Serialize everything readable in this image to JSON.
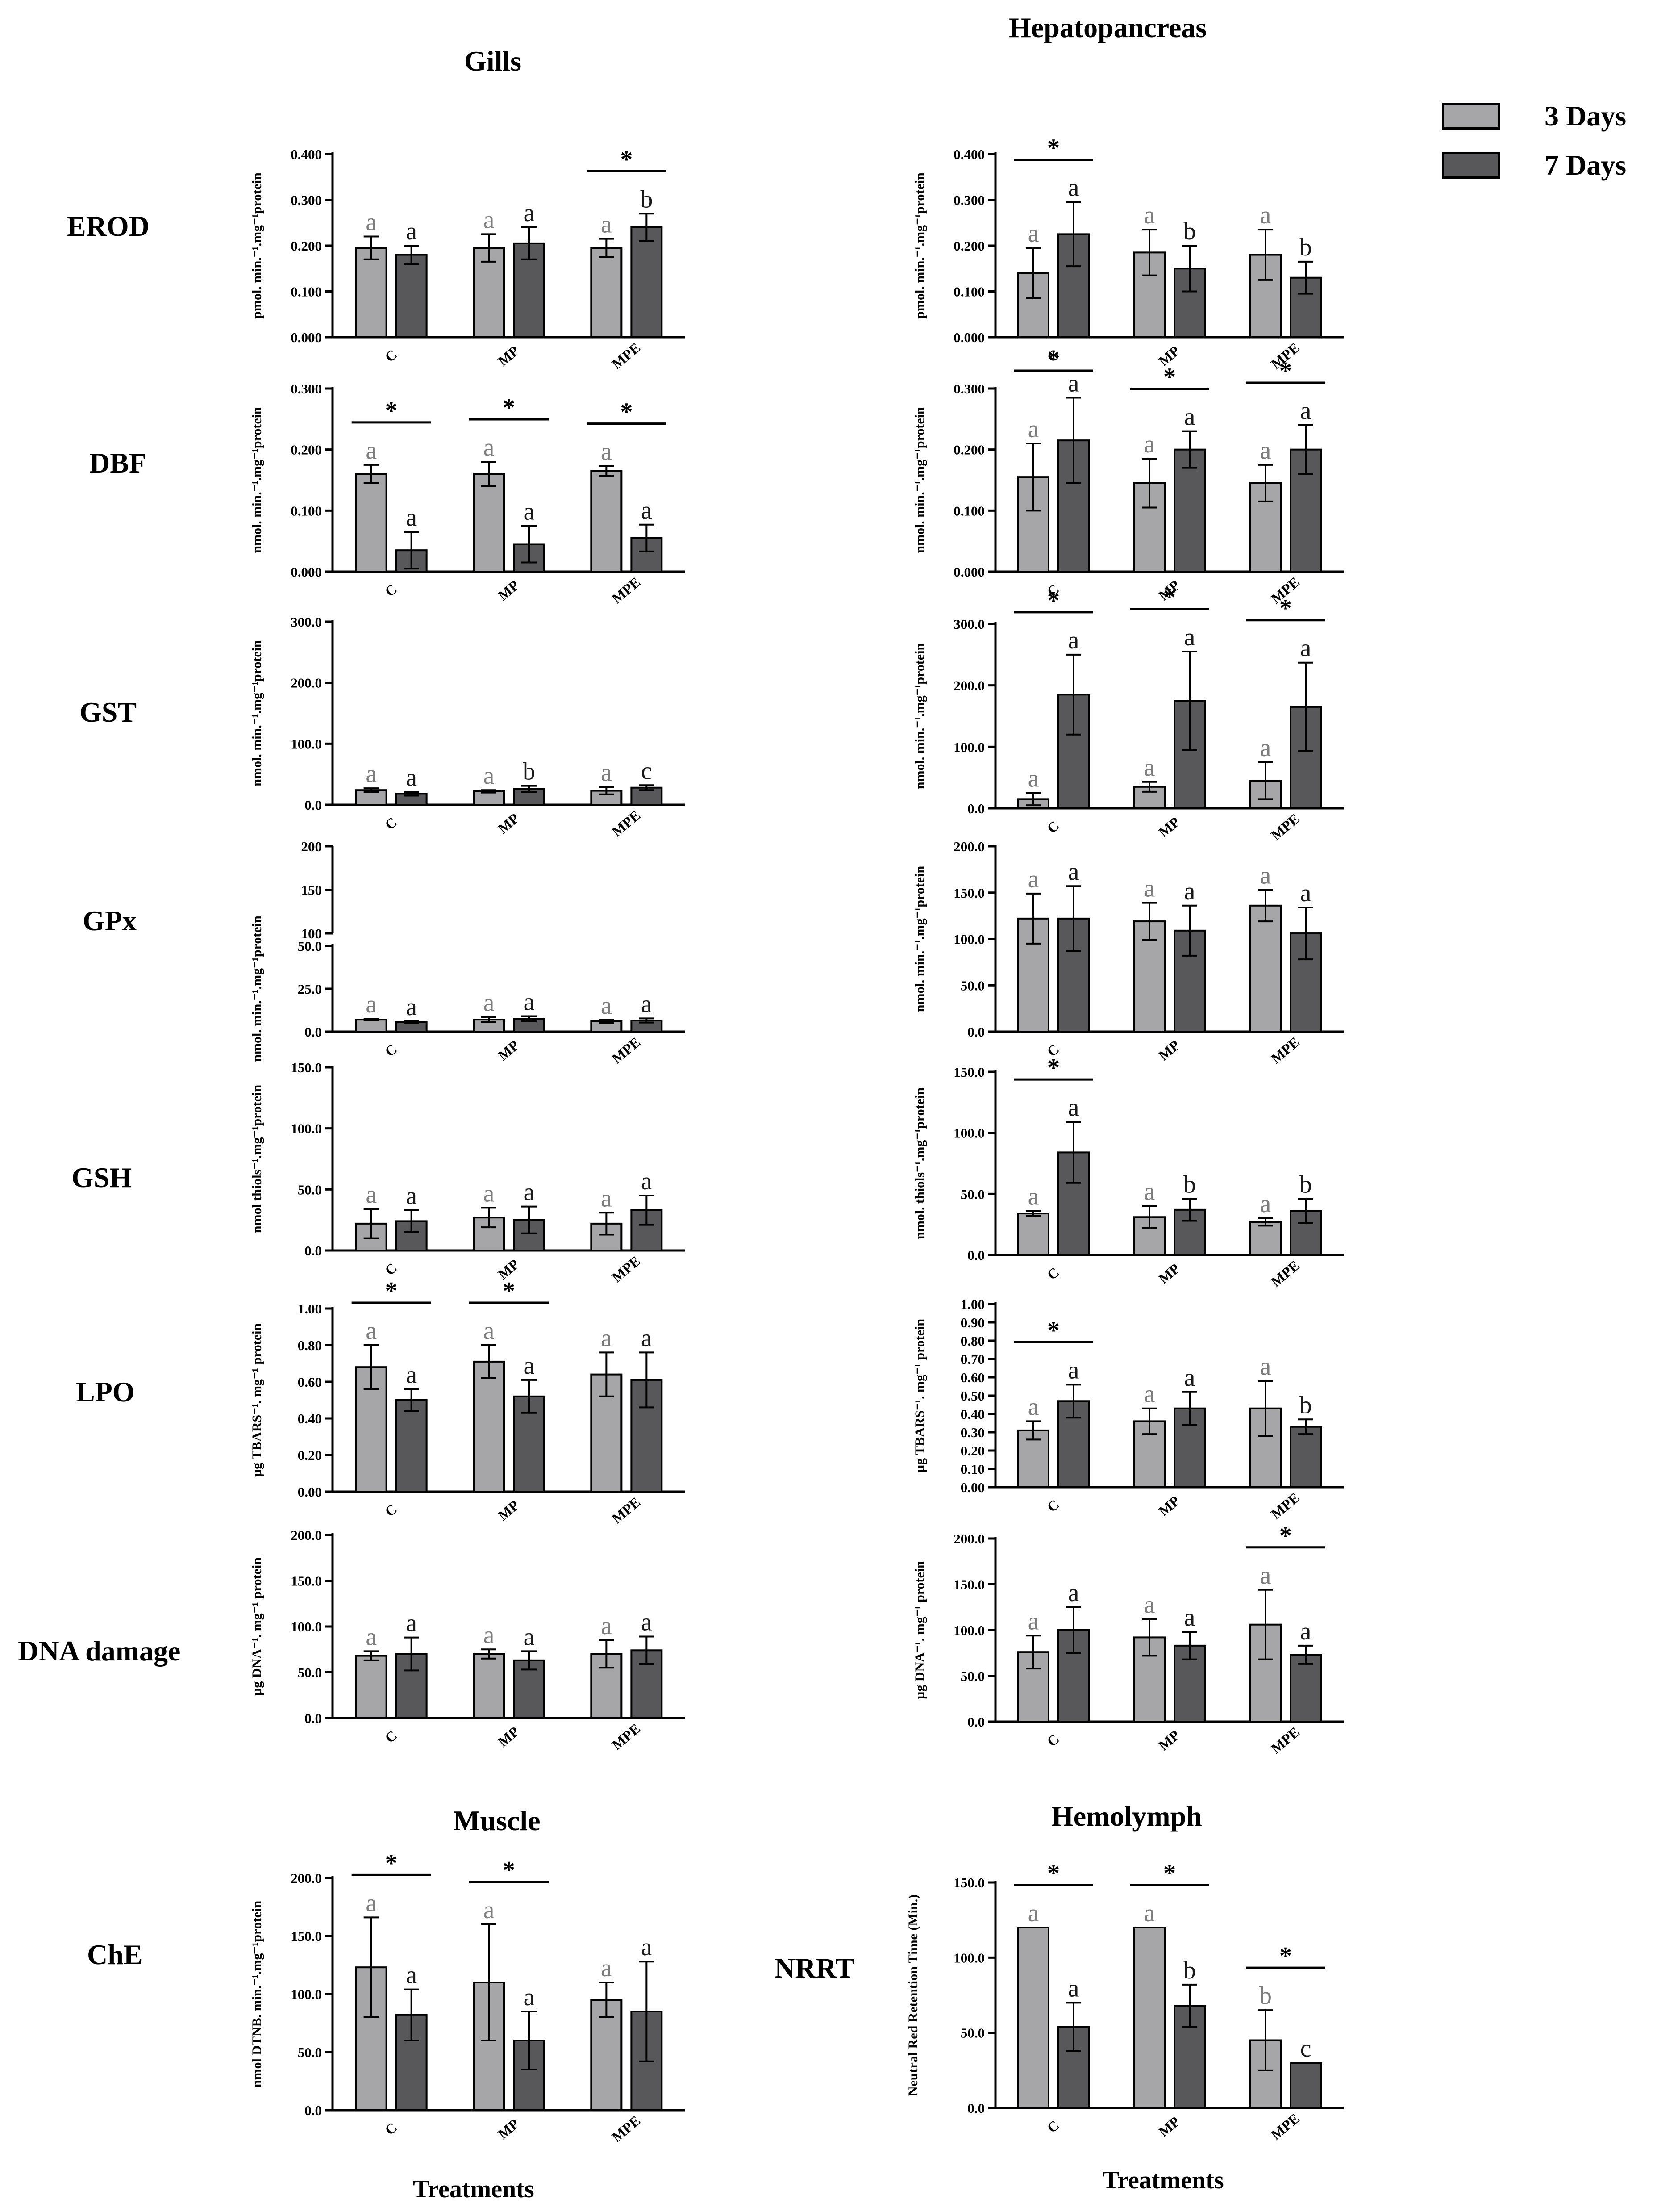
{
  "figure": {
    "titles": {
      "gills": "Gills",
      "hepatopancreas": "Hepatopancreas",
      "muscle": "Muscle",
      "hemolymph": "Hemolymph"
    },
    "row_labels": [
      "EROD",
      "DBF",
      "GST",
      "GPx",
      "GSH",
      "LPO",
      "DNA damage",
      "ChE",
      "NRRT"
    ],
    "x_axis_title": "Treatments",
    "legend": [
      {
        "label": "3 Days",
        "color": "#a6a6a8"
      },
      {
        "label": "7 Days",
        "color": "#58585a"
      }
    ],
    "colors": {
      "day3": "#a6a6a8",
      "day7": "#58585a",
      "text3": "#7d7d7d",
      "text7": "#1a1a1a"
    }
  },
  "chart_data": [
    {
      "id": "gills-erod",
      "panel": "Gills",
      "row": "EROD",
      "type": "bar",
      "categories": [
        "C",
        "MP",
        "MPE"
      ],
      "ylabel": "pmol. min.⁻¹.mg⁻¹protein",
      "ylim": [
        0,
        0.4
      ],
      "ticks": [
        "0.000",
        "0.100",
        "0.200",
        "0.300",
        "0.400"
      ],
      "series": [
        {
          "name": "3 Days",
          "values": [
            0.195,
            0.195,
            0.195
          ],
          "errors": [
            0.025,
            0.03,
            0.02
          ],
          "letters": [
            "a",
            "a",
            "a"
          ]
        },
        {
          "name": "7 Days",
          "values": [
            0.18,
            0.205,
            0.24
          ],
          "errors": [
            0.02,
            0.035,
            0.03
          ],
          "letters": [
            "a",
            "a",
            "b"
          ]
        }
      ],
      "significance": [
        "",
        "",
        "*"
      ]
    },
    {
      "id": "hepato-erod",
      "panel": "Hepatopancreas",
      "row": "EROD",
      "type": "bar",
      "categories": [
        "C",
        "MP",
        "MPE"
      ],
      "ylabel": "pmol. min.⁻¹.mg⁻¹protein",
      "ylim": [
        0,
        0.4
      ],
      "ticks": [
        "0.000",
        "0.100",
        "0.200",
        "0.300",
        "0.400"
      ],
      "series": [
        {
          "name": "3 Days",
          "values": [
            0.14,
            0.185,
            0.18
          ],
          "errors": [
            0.055,
            0.05,
            0.055
          ],
          "letters": [
            "a",
            "a",
            "a"
          ]
        },
        {
          "name": "7 Days",
          "values": [
            0.225,
            0.15,
            0.13
          ],
          "errors": [
            0.07,
            0.05,
            0.035
          ],
          "letters": [
            "a",
            "b",
            "b"
          ]
        }
      ],
      "significance": [
        "*",
        "",
        ""
      ]
    },
    {
      "id": "gills-dbf",
      "panel": "Gills",
      "row": "DBF",
      "type": "bar",
      "categories": [
        "C",
        "MP",
        "MPE"
      ],
      "ylabel": "nmol. min.⁻¹.mg⁻¹protein",
      "ylim": [
        0,
        0.3
      ],
      "ticks": [
        "0.000",
        "0.100",
        "0.200",
        "0.300"
      ],
      "series": [
        {
          "name": "3 Days",
          "values": [
            0.16,
            0.16,
            0.165
          ],
          "errors": [
            0.015,
            0.02,
            0.008
          ],
          "letters": [
            "a",
            "a",
            "a"
          ]
        },
        {
          "name": "7 Days",
          "values": [
            0.035,
            0.045,
            0.055
          ],
          "errors": [
            0.03,
            0.03,
            0.022
          ],
          "letters": [
            "a",
            "a",
            "a"
          ]
        }
      ],
      "significance": [
        "*",
        "*",
        "*"
      ]
    },
    {
      "id": "hepato-dbf",
      "panel": "Hepatopancreas",
      "row": "DBF",
      "type": "bar",
      "categories": [
        "C",
        "MP",
        "MPE"
      ],
      "ylabel": "nmol. min.⁻¹.mg⁻¹protein",
      "ylim": [
        0,
        0.3
      ],
      "ticks": [
        "0.000",
        "0.100",
        "0.200",
        "0.300"
      ],
      "series": [
        {
          "name": "3 Days",
          "values": [
            0.155,
            0.145,
            0.145
          ],
          "errors": [
            0.055,
            0.04,
            0.03
          ],
          "letters": [
            "a",
            "a",
            "a"
          ]
        },
        {
          "name": "7 Days",
          "values": [
            0.215,
            0.2,
            0.2
          ],
          "errors": [
            0.07,
            0.03,
            0.04
          ],
          "letters": [
            "a",
            "a",
            "a"
          ]
        }
      ],
      "significance": [
        "*",
        "*",
        "*"
      ]
    },
    {
      "id": "gills-gst",
      "panel": "Gills",
      "row": "GST",
      "type": "bar",
      "categories": [
        "C",
        "MP",
        "MPE"
      ],
      "ylabel": "nmol. min.⁻¹.mg⁻¹protein",
      "ylim": [
        0,
        300
      ],
      "ticks": [
        "0.0",
        "100.0",
        "200.0",
        "300.0"
      ],
      "series": [
        {
          "name": "3 Days",
          "values": [
            24,
            22,
            23
          ],
          "errors": [
            3,
            2,
            6
          ],
          "letters": [
            "a",
            "a",
            "a"
          ]
        },
        {
          "name": "7 Days",
          "values": [
            18,
            26,
            28
          ],
          "errors": [
            3,
            5,
            4
          ],
          "letters": [
            "a",
            "b",
            "c"
          ]
        }
      ],
      "significance": [
        "",
        "",
        ""
      ]
    },
    {
      "id": "hepato-gst",
      "panel": "Hepatopancreas",
      "row": "GST",
      "type": "bar",
      "categories": [
        "C",
        "MP",
        "MPE"
      ],
      "ylabel": "nmol. min.⁻¹.mg⁻¹protein",
      "ylim": [
        0,
        300
      ],
      "ticks": [
        "0.0",
        "100.0",
        "200.0",
        "300.0"
      ],
      "series": [
        {
          "name": "3 Days",
          "values": [
            15,
            35,
            45
          ],
          "errors": [
            10,
            8,
            30
          ],
          "letters": [
            "a",
            "a",
            "a"
          ]
        },
        {
          "name": "7 Days",
          "values": [
            185,
            175,
            165
          ],
          "errors": [
            65,
            80,
            72
          ],
          "letters": [
            "a",
            "a",
            "a"
          ]
        }
      ],
      "significance": [
        "*",
        "*",
        "*"
      ]
    },
    {
      "id": "gills-gpx",
      "panel": "Gills",
      "row": "GPx",
      "type": "bar",
      "categories": [
        "C",
        "MP",
        "MPE"
      ],
      "ylabel": "nmol. min.⁻¹.mg⁻¹protein",
      "ylim": [
        0,
        50
      ],
      "ticks": [
        "0.0",
        "25.0",
        "50.0"
      ],
      "upper_ticks": [
        "100",
        "150",
        "200"
      ],
      "series": [
        {
          "name": "3 Days",
          "values": [
            7,
            7,
            6
          ],
          "errors": [
            0.5,
            1.5,
            0.8
          ],
          "letters": [
            "a",
            "a",
            "a"
          ]
        },
        {
          "name": "7 Days",
          "values": [
            5.5,
            7.5,
            6.5
          ],
          "errors": [
            0.5,
            1.5,
            1.2
          ],
          "letters": [
            "a",
            "a",
            "a"
          ]
        }
      ],
      "significance": [
        "",
        "",
        ""
      ]
    },
    {
      "id": "hepato-gpx",
      "panel": "Hepatopancreas",
      "row": "GPx",
      "type": "bar",
      "categories": [
        "C",
        "MP",
        "MPE"
      ],
      "ylabel": "nmol. min.⁻¹.mg⁻¹protein",
      "ylim": [
        0,
        200
      ],
      "ticks": [
        "0.0",
        "50.0",
        "100.0",
        "150.0",
        "200.0"
      ],
      "series": [
        {
          "name": "3 Days",
          "values": [
            122,
            119,
            136
          ],
          "errors": [
            27,
            20,
            17
          ],
          "letters": [
            "a",
            "a",
            "a"
          ]
        },
        {
          "name": "7 Days",
          "values": [
            122,
            109,
            106
          ],
          "errors": [
            35,
            27,
            28
          ],
          "letters": [
            "a",
            "a",
            "a"
          ]
        }
      ],
      "significance": [
        "",
        "",
        ""
      ]
    },
    {
      "id": "gills-gsh",
      "panel": "Gills",
      "row": "GSH",
      "type": "bar",
      "categories": [
        "C",
        "MP",
        "MPE"
      ],
      "ylabel": "nmol thiols⁻¹.mg⁻¹protein",
      "ylim": [
        0,
        150
      ],
      "ticks": [
        "0.0",
        "50.0",
        "100.0",
        "150.0"
      ],
      "series": [
        {
          "name": "3 Days",
          "values": [
            22,
            27,
            22
          ],
          "errors": [
            12,
            8,
            9
          ],
          "letters": [
            "a",
            "a",
            "a"
          ]
        },
        {
          "name": "7 Days",
          "values": [
            24,
            25,
            33
          ],
          "errors": [
            9,
            11,
            12
          ],
          "letters": [
            "a",
            "a",
            "a"
          ]
        }
      ],
      "significance": [
        "",
        "",
        ""
      ]
    },
    {
      "id": "hepato-gsh",
      "panel": "Hepatopancreas",
      "row": "GSH",
      "type": "bar",
      "categories": [
        "C",
        "MP",
        "MPE"
      ],
      "ylabel": "nmol. thiols⁻¹.mg⁻¹protein",
      "ylim": [
        0,
        150
      ],
      "ticks": [
        "0.0",
        "50.0",
        "100.0",
        "150.0"
      ],
      "series": [
        {
          "name": "3 Days",
          "values": [
            34,
            31,
            27
          ],
          "errors": [
            2,
            9,
            3
          ],
          "letters": [
            "a",
            "a",
            "a"
          ]
        },
        {
          "name": "7 Days",
          "values": [
            84,
            37,
            36
          ],
          "errors": [
            25,
            9,
            10
          ],
          "letters": [
            "a",
            "b",
            "b"
          ]
        }
      ],
      "significance": [
        "*",
        "",
        ""
      ]
    },
    {
      "id": "gills-lpo",
      "panel": "Gills",
      "row": "LPO",
      "type": "bar",
      "categories": [
        "C",
        "MP",
        "MPE"
      ],
      "ylabel": "µg TBARS⁻¹. mg⁻¹ protein",
      "ylim": [
        0,
        1
      ],
      "ticks": [
        "0.00",
        "0.20",
        "0.40",
        "0.60",
        "0.80",
        "1.00"
      ],
      "series": [
        {
          "name": "3 Days",
          "values": [
            0.68,
            0.71,
            0.64
          ],
          "errors": [
            0.12,
            0.09,
            0.12
          ],
          "letters": [
            "a",
            "a",
            "a"
          ]
        },
        {
          "name": "7 Days",
          "values": [
            0.5,
            0.52,
            0.61
          ],
          "errors": [
            0.06,
            0.09,
            0.15
          ],
          "letters": [
            "a",
            "a",
            "a"
          ]
        }
      ],
      "significance": [
        "*",
        "*",
        ""
      ]
    },
    {
      "id": "hepato-lpo",
      "panel": "Hepatopancreas",
      "row": "LPO",
      "type": "bar",
      "categories": [
        "C",
        "MP",
        "MPE"
      ],
      "ylabel": "µg TBARS⁻¹. mg⁻¹ protein",
      "ylim": [
        0,
        1
      ],
      "ticks": [
        "0.00",
        "0.10",
        "0.20",
        "0.30",
        "0.40",
        "0.50",
        "0.60",
        "0.70",
        "0.80",
        "0.90",
        "1.00"
      ],
      "series": [
        {
          "name": "3 Days",
          "values": [
            0.31,
            0.36,
            0.43
          ],
          "errors": [
            0.05,
            0.07,
            0.15
          ],
          "letters": [
            "a",
            "a",
            "a"
          ]
        },
        {
          "name": "7 Days",
          "values": [
            0.47,
            0.43,
            0.33
          ],
          "errors": [
            0.09,
            0.09,
            0.04
          ],
          "letters": [
            "a",
            "a",
            "b"
          ]
        }
      ],
      "significance": [
        "*",
        "",
        ""
      ]
    },
    {
      "id": "gills-dna",
      "panel": "Gills",
      "row": "DNA damage",
      "type": "bar",
      "categories": [
        "C",
        "MP",
        "MPE"
      ],
      "ylabel": "µg DNA⁻¹. mg⁻¹ protein",
      "ylim": [
        0,
        200
      ],
      "ticks": [
        "0.0",
        "50.0",
        "100.0",
        "150.0",
        "200.0"
      ],
      "series": [
        {
          "name": "3 Days",
          "values": [
            68,
            70,
            70
          ],
          "errors": [
            5,
            5,
            15
          ],
          "letters": [
            "a",
            "a",
            "a"
          ]
        },
        {
          "name": "7 Days",
          "values": [
            70,
            63,
            74
          ],
          "errors": [
            18,
            10,
            15
          ],
          "letters": [
            "a",
            "a",
            "a"
          ]
        }
      ],
      "significance": [
        "",
        "",
        ""
      ]
    },
    {
      "id": "hepato-dna",
      "panel": "Hepatopancreas",
      "row": "DNA damage",
      "type": "bar",
      "categories": [
        "C",
        "MP",
        "MPE"
      ],
      "ylabel": "µg DNA⁻¹. mg⁻¹ protein",
      "ylim": [
        0,
        200
      ],
      "ticks": [
        "0.0",
        "50.0",
        "100.0",
        "150.0",
        "200.0"
      ],
      "series": [
        {
          "name": "3 Days",
          "values": [
            76,
            92,
            106
          ],
          "errors": [
            18,
            20,
            38
          ],
          "letters": [
            "a",
            "a",
            "a"
          ]
        },
        {
          "name": "7 Days",
          "values": [
            100,
            83,
            73
          ],
          "errors": [
            25,
            15,
            10
          ],
          "letters": [
            "a",
            "a",
            "a"
          ]
        }
      ],
      "significance": [
        "",
        "",
        "*"
      ]
    },
    {
      "id": "muscle-che",
      "panel": "Muscle",
      "row": "ChE",
      "type": "bar",
      "categories": [
        "C",
        "MP",
        "MPE"
      ],
      "ylabel": "nmol DTNB. min.⁻¹.mg⁻¹protein",
      "ylim": [
        0,
        200
      ],
      "ticks": [
        "0.0",
        "50.0",
        "100.0",
        "150.0",
        "200.0"
      ],
      "series": [
        {
          "name": "3 Days",
          "values": [
            123,
            110,
            95
          ],
          "errors": [
            43,
            50,
            15
          ],
          "letters": [
            "a",
            "a",
            "a"
          ]
        },
        {
          "name": "7 Days",
          "values": [
            82,
            60,
            85
          ],
          "errors": [
            22,
            25,
            43
          ],
          "letters": [
            "a",
            "a",
            "a"
          ]
        }
      ],
      "significance": [
        "*",
        "*",
        ""
      ]
    },
    {
      "id": "hemolymph-nrrt",
      "panel": "Hemolymph",
      "row": "NRRT",
      "type": "bar",
      "categories": [
        "C",
        "MP",
        "MPE"
      ],
      "ylabel": "Neutral Red Retention Time (Min.)",
      "ylim": [
        0,
        150
      ],
      "ticks": [
        "0.0",
        "50.0",
        "100.0",
        "150.0"
      ],
      "series": [
        {
          "name": "3 Days",
          "values": [
            120,
            120,
            45
          ],
          "errors": [
            0,
            0,
            20
          ],
          "letters": [
            "a",
            "a",
            "b"
          ]
        },
        {
          "name": "7 Days",
          "values": [
            54,
            68,
            30
          ],
          "errors": [
            16,
            14,
            0
          ],
          "letters": [
            "a",
            "b",
            "c"
          ]
        }
      ],
      "significance": [
        "*",
        "*",
        "*"
      ]
    }
  ]
}
